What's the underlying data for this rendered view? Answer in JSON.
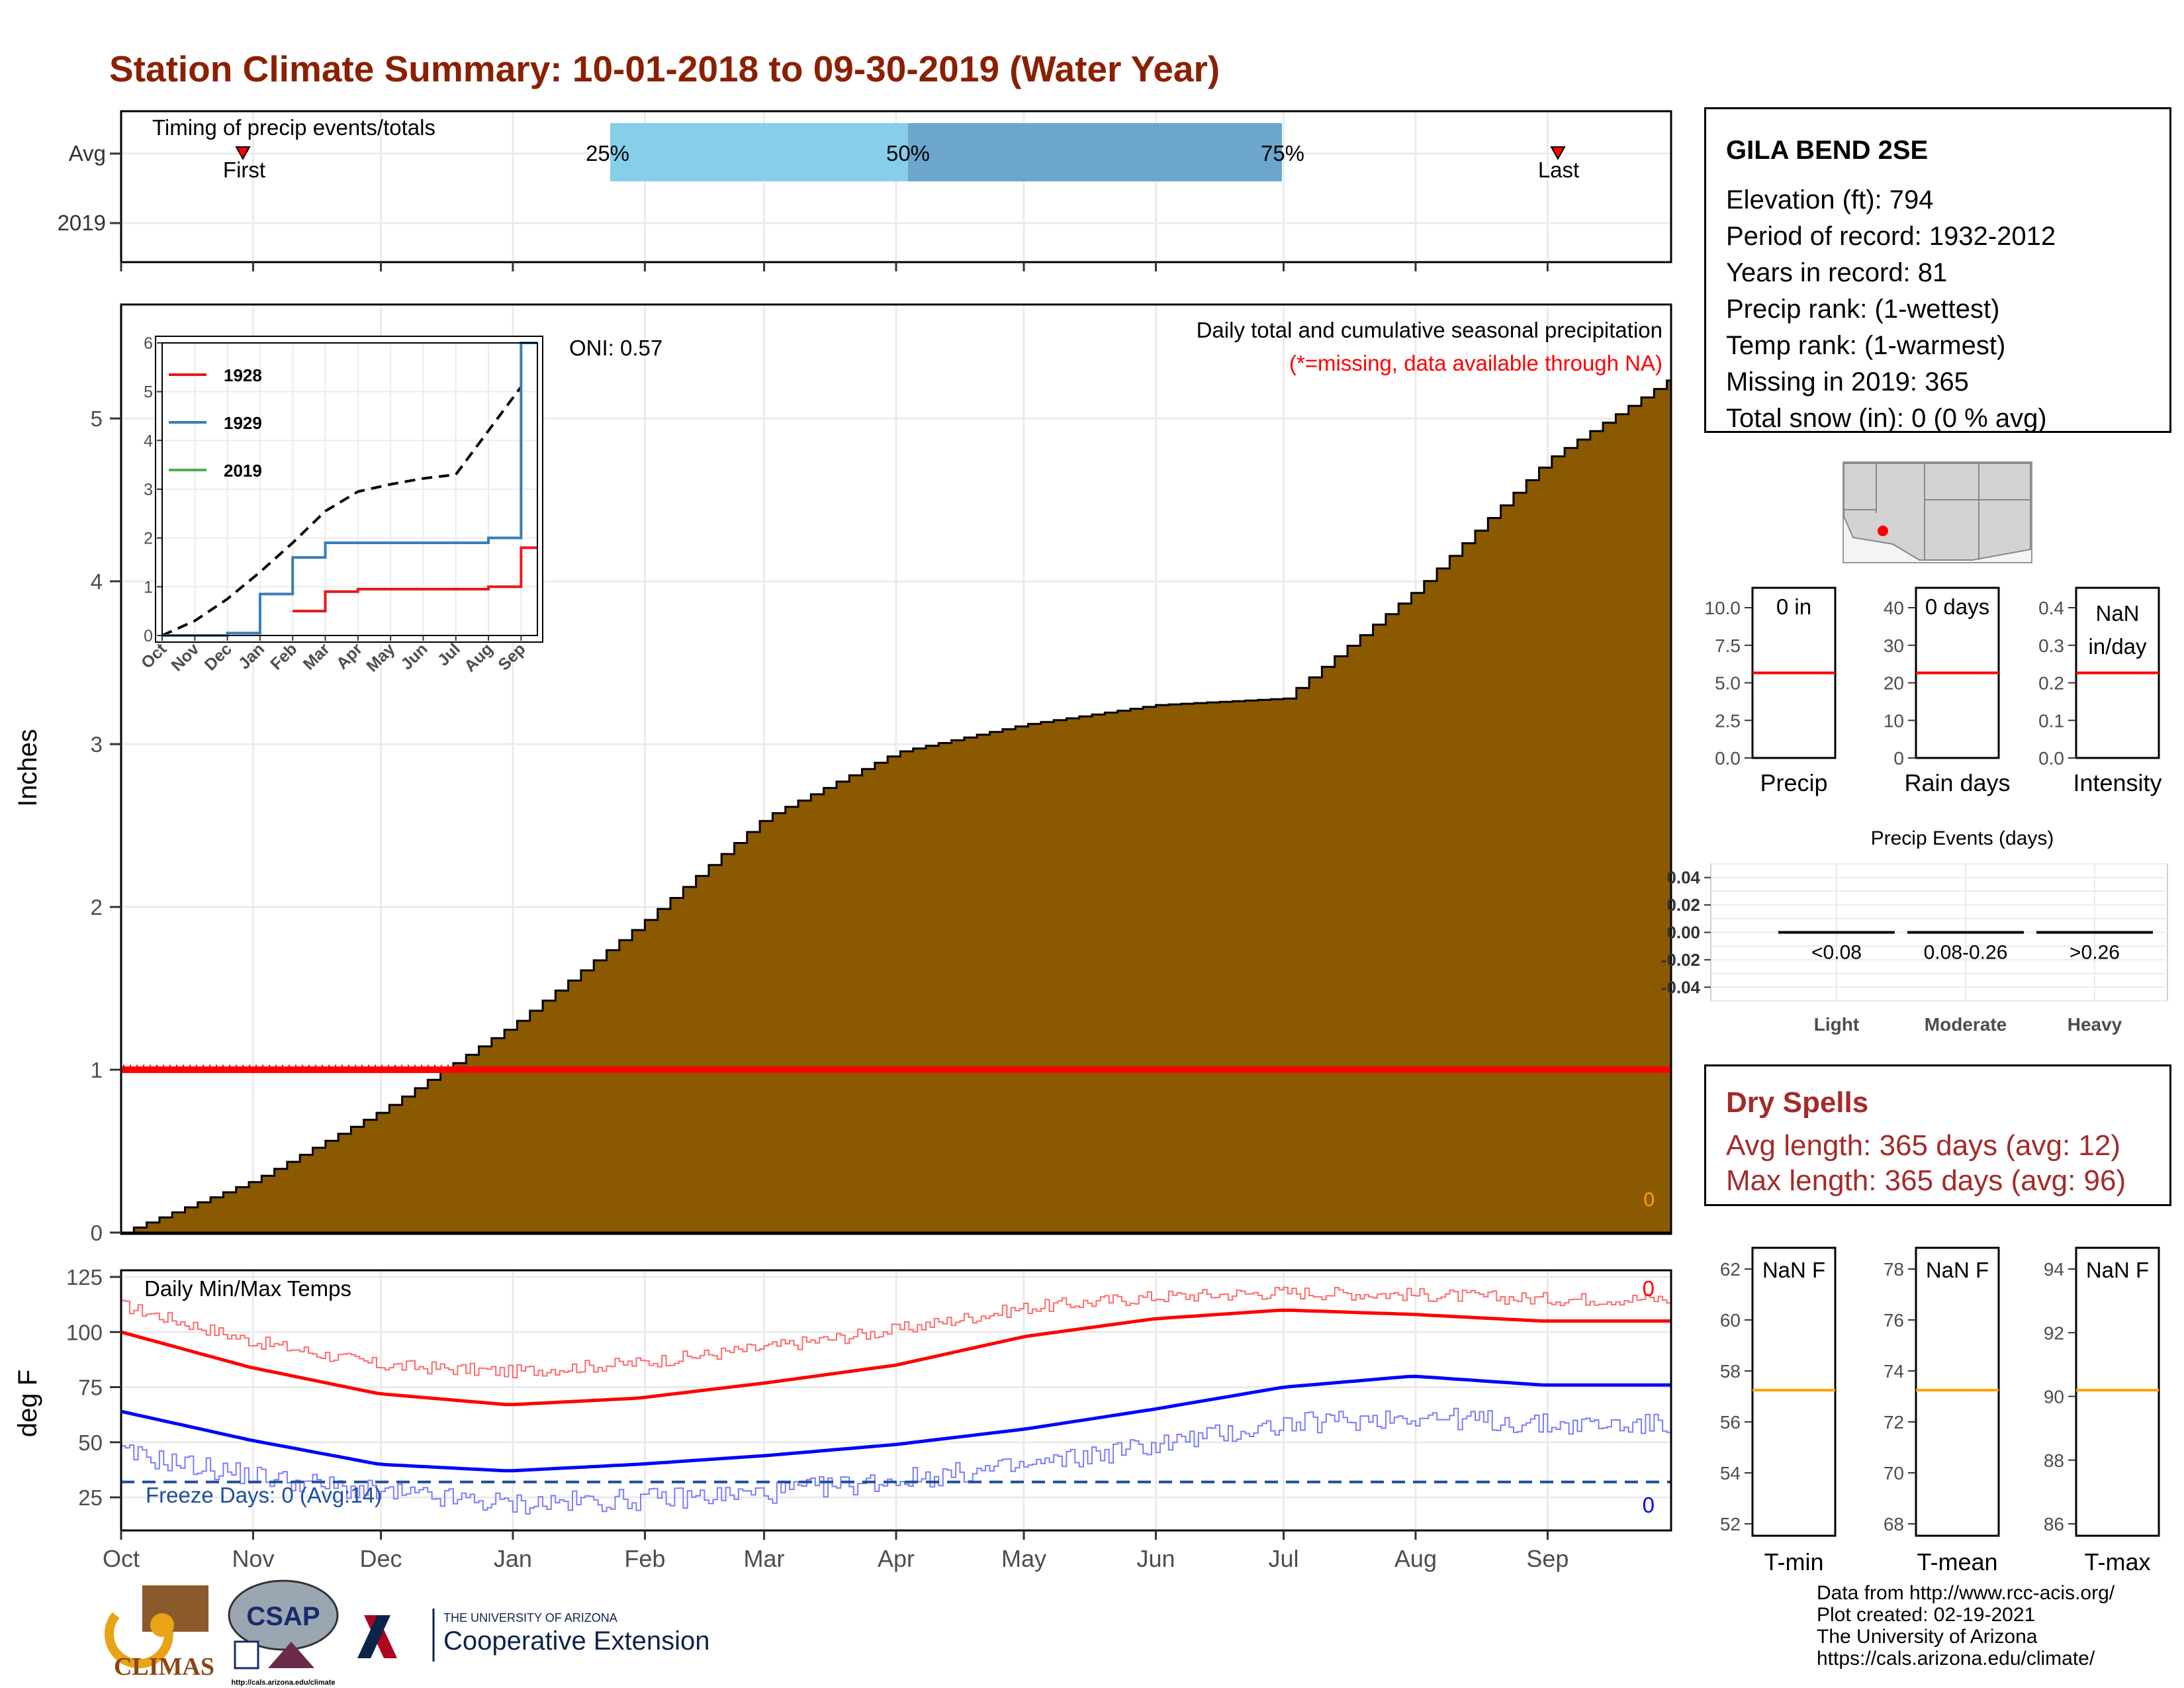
{
  "title": "Station Climate Summary: 10-01-2018 to 09-30-2019 (Water Year)",
  "timing": {
    "label": "Timing of precip events/totals",
    "rows": [
      "Avg",
      "2019"
    ],
    "first_label": "First",
    "last_label": "Last",
    "pct_labels": [
      "25%",
      "50%",
      "75%"
    ],
    "colors": {
      "q1": "#87CEEB",
      "q2": "#6CA6CD"
    }
  },
  "main": {
    "ylabel": "Inches",
    "oni": "ONI: 0.57",
    "subtitle": "Daily total and cumulative seasonal precipitation",
    "missing_note": "(*=missing, data available through NA)",
    "corner_value": "0",
    "fill_color": "#8B5A00",
    "y_ticks": [
      "0",
      "1",
      "2",
      "3",
      "4",
      "5"
    ],
    "months": [
      "Oct",
      "Nov",
      "Dec",
      "Jan",
      "Feb",
      "Mar",
      "Apr",
      "May",
      "Jun",
      "Jul",
      "Aug",
      "Sep"
    ]
  },
  "inset": {
    "legend": [
      {
        "name": "1928",
        "color": "#E41A1C"
      },
      {
        "name": "1929",
        "color": "#377EB8"
      },
      {
        "name": "2019",
        "color": "#4DAF4A"
      }
    ],
    "y_ticks": [
      "0",
      "1",
      "2",
      "3",
      "4",
      "5",
      "6"
    ],
    "months": [
      "Oct",
      "Nov",
      "Dec",
      "Jan",
      "Feb",
      "Mar",
      "Apr",
      "May",
      "Jun",
      "Jul",
      "Aug",
      "Sep"
    ]
  },
  "temps": {
    "label": "Daily Min/Max Temps",
    "ylabel": "deg F",
    "freeze": "Freeze Days: 0 (Avg:14)",
    "max_count": "0",
    "min_count": "0",
    "y_ticks": [
      "25",
      "50",
      "75",
      "100",
      "125"
    ]
  },
  "station": {
    "name": "GILA BEND 2SE",
    "lines": [
      "Elevation (ft): 794",
      "Period of record: 1932-2012",
      "Years in record: 81",
      "Precip rank:  (1-wettest)",
      "Temp rank:  (1-warmest)",
      "Missing in 2019: 365",
      "Total snow (in): 0 (0 % avg)"
    ]
  },
  "mini_precip": [
    {
      "label": "Precip",
      "value": "0 in",
      "ticks": [
        "0.0",
        "2.5",
        "5.0",
        "7.5",
        "10.0"
      ]
    },
    {
      "label": "Rain days",
      "value": "0 days",
      "ticks": [
        "0",
        "10",
        "20",
        "30",
        "40"
      ]
    },
    {
      "label": "Intensity",
      "value": "NaN in/day",
      "ticks": [
        "0.0",
        "0.1",
        "0.2",
        "0.3",
        "0.4"
      ]
    }
  ],
  "events": {
    "title": "Precip Events (days)",
    "y_ticks": [
      "-0.04",
      "-0.02",
      "0.00",
      "0.02",
      "0.04"
    ],
    "categories": [
      "Light",
      "Moderate",
      "Heavy"
    ],
    "ranges": [
      "<0.08",
      "0.08-0.26",
      ">0.26"
    ]
  },
  "dry_spells": {
    "title": "Dry Spells",
    "avg": "Avg length: 365 days (avg: 12)",
    "max": "Max length: 365 days (avg: 96)"
  },
  "mini_temp": [
    {
      "label": "T-min",
      "value": "NaN F",
      "ticks": [
        "52",
        "54",
        "56",
        "58",
        "60",
        "62"
      ]
    },
    {
      "label": "T-mean",
      "value": "NaN F",
      "ticks": [
        "68",
        "70",
        "72",
        "74",
        "76",
        "78"
      ]
    },
    {
      "label": "T-max",
      "value": "NaN F",
      "ticks": [
        "86",
        "88",
        "90",
        "92",
        "94"
      ]
    }
  ],
  "credits": [
    "Data from http://www.rcc-acis.org/",
    "Plot created: 02-19-2021",
    "The University of Arizona",
    "https://cals.arizona.edu/climate/"
  ],
  "logos": {
    "climas": "CLIMAS",
    "csap": "CSAP",
    "csap_url": "http://cals.arizona.edu/climate",
    "ua_small": "THE UNIVERSITY OF ARIZONA",
    "ua_big": "Cooperative Extension"
  },
  "chart_data": [
    {
      "type": "area",
      "title": "Daily total and cumulative seasonal precipitation",
      "ylabel": "Inches",
      "ylim": [
        0,
        5.7
      ],
      "series": [
        {
          "name": "",
          "x": [
            "Oct",
            "Nov",
            "Dec",
            "Jan",
            "Feb",
            "Mar",
            "Apr",
            "May",
            "Jun",
            "Jul",
            "Aug",
            "Sep",
            "Sep 30"
          ],
          "values": [
            0.0,
            0.32,
            0.75,
            1.28,
            1.92,
            2.55,
            2.95,
            3.12,
            3.24,
            3.28,
            3.95,
            4.75,
            5.25
          ]
        },
        {
          "name": "",
          "constant": 1.0
        }
      ]
    },
    {
      "type": "line",
      "ylim": [
        0,
        6
      ],
      "x": [
        "Oct",
        "Nov",
        "Dec",
        "Jan",
        "Feb",
        "Mar",
        "Apr",
        "May",
        "Jun",
        "Jul",
        "Aug",
        "Sep"
      ],
      "series": [
        {
          "name": "1928",
          "values": [
            null,
            null,
            null,
            null,
            0.5,
            0.9,
            0.95,
            0.95,
            0.95,
            0.95,
            1.0,
            1.8
          ]
        },
        {
          "name": "1929",
          "values": [
            0,
            0,
            0.05,
            0.85,
            1.6,
            1.9,
            1.9,
            1.9,
            1.9,
            1.9,
            2.0,
            6.0
          ]
        },
        {
          "name": "",
          "values": [
            0.0,
            0.3,
            0.75,
            1.3,
            1.9,
            2.55,
            2.95,
            3.1,
            3.22,
            3.3,
            4.2,
            5.1
          ]
        }
      ]
    },
    {
      "type": "line",
      "title": "Daily Min/Max Temps",
      "ylabel": "deg F",
      "ylim": [
        10,
        128
      ],
      "x": [
        "Oct",
        "Nov",
        "Dec",
        "Jan",
        "Feb",
        "Mar",
        "Apr",
        "May",
        "Jun",
        "Jul",
        "Aug",
        "Sep"
      ],
      "series": [
        {
          "name": "",
          "values": [
            100,
            84,
            72,
            67,
            70,
            77,
            85,
            98,
            106,
            110,
            108,
            105
          ]
        },
        {
          "name": "",
          "values": [
            64,
            51,
            40,
            37,
            40,
            44,
            49,
            56,
            65,
            75,
            80,
            76
          ]
        },
        {
          "name": "",
          "values": [
            112,
            96,
            85,
            82,
            86,
            93,
            101,
            111,
            116,
            118,
            117,
            115
          ]
        },
        {
          "name": "",
          "values": [
            45,
            35,
            27,
            22,
            24,
            27,
            33,
            39,
            49,
            58,
            62,
            58
          ]
        },
        {
          "name": "",
          "constant": 32
        }
      ]
    },
    {
      "type": "bar",
      "title": "Precip Events (days)",
      "categories": [
        "Light",
        "Moderate",
        "Heavy"
      ],
      "values": [
        0,
        0,
        0
      ],
      "ylim": [
        -0.05,
        0.05
      ]
    }
  ]
}
